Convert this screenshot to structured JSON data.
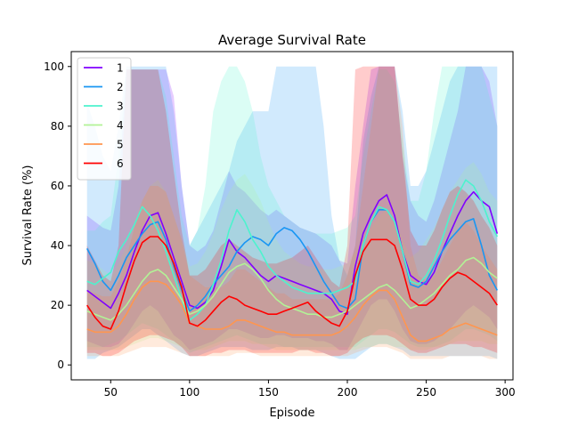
{
  "chart_data": {
    "type": "line",
    "title": "Average Survival Rate",
    "xlabel": "Episode",
    "ylabel": "Survival Rate (%)",
    "xlim": [
      25,
      305
    ],
    "ylim": [
      -5,
      105
    ],
    "xticks": [
      50,
      100,
      150,
      200,
      250,
      300
    ],
    "yticks": [
      0,
      20,
      40,
      60,
      80,
      100
    ],
    "grid": false,
    "legend_position": "top-left",
    "x": [
      35,
      40,
      45,
      50,
      55,
      60,
      65,
      70,
      75,
      80,
      85,
      90,
      95,
      100,
      105,
      110,
      115,
      120,
      125,
      130,
      135,
      140,
      145,
      150,
      155,
      160,
      165,
      170,
      175,
      180,
      185,
      190,
      195,
      200,
      205,
      210,
      215,
      220,
      225,
      230,
      235,
      240,
      245,
      250,
      255,
      260,
      265,
      270,
      275,
      280,
      285,
      290,
      295
    ],
    "series": [
      {
        "name": "1",
        "color": "#8000ff",
        "values": [
          25,
          23,
          21,
          19,
          24,
          30,
          38,
          45,
          50,
          51,
          44,
          36,
          28,
          20,
          19,
          21,
          25,
          33,
          42,
          38,
          36,
          33,
          30,
          28,
          30,
          29,
          28,
          27,
          26,
          25,
          24,
          22,
          18,
          17,
          33,
          44,
          50,
          55,
          57,
          50,
          38,
          30,
          28,
          27,
          31,
          38,
          44,
          50,
          55,
          58,
          55,
          53,
          44
        ],
        "band_low": [
          8,
          7,
          6,
          6,
          7,
          10,
          14,
          18,
          20,
          18,
          14,
          10,
          8,
          5,
          6,
          7,
          8,
          10,
          12,
          12,
          11,
          10,
          9,
          9,
          10,
          10,
          9,
          9,
          9,
          8,
          8,
          7,
          5,
          5,
          10,
          15,
          20,
          22,
          22,
          18,
          12,
          8,
          7,
          7,
          8,
          10,
          12,
          15,
          18,
          20,
          18,
          16,
          12
        ],
        "band_high": [
          50,
          48,
          46,
          45,
          60,
          99,
          99,
          99,
          99,
          99,
          99,
          90,
          60,
          40,
          38,
          40,
          45,
          55,
          65,
          60,
          58,
          55,
          52,
          50,
          52,
          50,
          48,
          46,
          45,
          44,
          42,
          40,
          35,
          34,
          60,
          80,
          99,
          100,
          100,
          100,
          70,
          55,
          50,
          48,
          55,
          65,
          75,
          85,
          100,
          100,
          100,
          95,
          80
        ]
      },
      {
        "name": "2",
        "color": "#1996f3",
        "values": [
          39,
          34,
          28,
          25,
          30,
          36,
          40,
          44,
          47,
          48,
          42,
          33,
          25,
          18,
          20,
          23,
          27,
          30,
          33,
          38,
          41,
          43,
          42,
          40,
          44,
          46,
          45,
          42,
          38,
          33,
          28,
          24,
          20,
          19,
          22,
          40,
          48,
          52,
          52,
          48,
          38,
          27,
          26,
          28,
          33,
          38,
          42,
          45,
          48,
          49,
          40,
          30,
          25
        ],
        "band_low": [
          2,
          2,
          4,
          5,
          6,
          8,
          10,
          12,
          12,
          10,
          8,
          6,
          4,
          3,
          3,
          4,
          5,
          6,
          6,
          6,
          6,
          5,
          5,
          5,
          6,
          6,
          6,
          5,
          5,
          5,
          4,
          3,
          2,
          2,
          2,
          4,
          6,
          7,
          7,
          6,
          5,
          3,
          3,
          3,
          3,
          3,
          3,
          3,
          3,
          3,
          3,
          3,
          2
        ],
        "band_high": [
          88,
          80,
          70,
          65,
          80,
          100,
          100,
          100,
          100,
          100,
          100,
          85,
          60,
          40,
          45,
          50,
          55,
          60,
          65,
          75,
          80,
          85,
          85,
          85,
          100,
          100,
          100,
          100,
          100,
          100,
          80,
          50,
          35,
          30,
          40,
          75,
          90,
          100,
          100,
          100,
          85,
          60,
          60,
          65,
          75,
          85,
          95,
          100,
          100,
          100,
          100,
          100,
          100
        ]
      },
      {
        "name": "3",
        "color": "#4df3ce",
        "values": [
          28,
          27,
          29,
          31,
          38,
          42,
          47,
          53,
          50,
          45,
          38,
          30,
          22,
          15,
          17,
          20,
          27,
          35,
          45,
          52,
          48,
          42,
          38,
          33,
          30,
          28,
          26,
          25,
          24,
          24,
          24,
          24,
          25,
          26,
          28,
          40,
          48,
          53,
          52,
          48,
          38,
          28,
          27,
          30,
          35,
          42,
          50,
          57,
          62,
          60,
          55,
          48,
          43
        ],
        "band_low": [
          6,
          6,
          6,
          7,
          8,
          10,
          12,
          14,
          13,
          12,
          10,
          8,
          6,
          4,
          5,
          6,
          7,
          8,
          9,
          10,
          9,
          8,
          7,
          7,
          7,
          6,
          6,
          6,
          6,
          6,
          6,
          6,
          6,
          6,
          6,
          8,
          10,
          12,
          12,
          11,
          9,
          7,
          6,
          6,
          6,
          7,
          8,
          10,
          12,
          12,
          11,
          10,
          8
        ],
        "band_high": [
          45,
          45,
          48,
          50,
          70,
          99,
          99,
          99,
          99,
          99,
          90,
          70,
          50,
          40,
          45,
          60,
          85,
          95,
          100,
          100,
          95,
          85,
          70,
          60,
          55,
          50,
          48,
          46,
          45,
          44,
          44,
          44,
          45,
          46,
          50,
          70,
          85,
          99,
          99,
          95,
          75,
          55,
          55,
          65,
          85,
          100,
          100,
          100,
          100,
          100,
          100,
          90,
          80
        ]
      },
      {
        "name": "4",
        "color": "#b2f396",
        "values": [
          18,
          17,
          16,
          15,
          17,
          20,
          24,
          28,
          31,
          32,
          30,
          26,
          22,
          17,
          18,
          20,
          23,
          27,
          31,
          33,
          34,
          32,
          29,
          25,
          22,
          20,
          19,
          18,
          17,
          17,
          16,
          16,
          17,
          18,
          20,
          22,
          24,
          26,
          27,
          25,
          22,
          19,
          20,
          22,
          24,
          27,
          30,
          32,
          35,
          36,
          34,
          31,
          29
        ],
        "band_low": [
          5,
          5,
          5,
          5,
          5,
          6,
          7,
          8,
          9,
          9,
          8,
          7,
          6,
          5,
          5,
          5,
          6,
          7,
          8,
          8,
          8,
          7,
          7,
          6,
          5,
          5,
          5,
          5,
          5,
          5,
          5,
          5,
          5,
          5,
          5,
          6,
          6,
          7,
          7,
          6,
          6,
          5,
          5,
          5,
          6,
          6,
          7,
          8,
          8,
          8,
          8,
          7,
          7
        ],
        "band_high": [
          35,
          34,
          32,
          30,
          34,
          40,
          48,
          55,
          60,
          62,
          58,
          50,
          42,
          33,
          34,
          38,
          44,
          52,
          58,
          62,
          64,
          60,
          55,
          48,
          42,
          38,
          36,
          34,
          33,
          33,
          32,
          32,
          33,
          34,
          38,
          42,
          46,
          50,
          52,
          48,
          42,
          36,
          38,
          42,
          46,
          52,
          58,
          62,
          66,
          68,
          64,
          58,
          55
        ]
      },
      {
        "name": "5",
        "color": "#ff964f",
        "values": [
          12,
          11,
          11,
          11,
          13,
          17,
          22,
          26,
          28,
          28,
          27,
          24,
          20,
          14,
          13,
          12,
          12,
          12,
          13,
          15,
          15,
          14,
          13,
          12,
          11,
          11,
          10,
          10,
          10,
          10,
          10,
          10,
          11,
          13,
          16,
          20,
          23,
          25,
          25,
          22,
          16,
          10,
          8,
          8,
          9,
          10,
          12,
          13,
          14,
          13,
          12,
          11,
          10
        ],
        "band_low": [
          3,
          3,
          3,
          3,
          3,
          4,
          5,
          6,
          6,
          6,
          6,
          5,
          4,
          3,
          3,
          3,
          3,
          3,
          3,
          4,
          4,
          4,
          3,
          3,
          3,
          3,
          3,
          3,
          3,
          3,
          3,
          3,
          3,
          3,
          4,
          5,
          6,
          6,
          6,
          5,
          4,
          2,
          2,
          2,
          2,
          2,
          3,
          3,
          3,
          3,
          3,
          2,
          2
        ],
        "band_high": [
          25,
          24,
          23,
          23,
          28,
          36,
          46,
          55,
          60,
          60,
          58,
          50,
          42,
          30,
          28,
          26,
          26,
          26,
          28,
          32,
          32,
          30,
          28,
          26,
          24,
          24,
          22,
          22,
          22,
          22,
          22,
          22,
          24,
          30,
          40,
          60,
          80,
          100,
          100,
          100,
          80,
          40,
          30,
          28,
          30,
          35,
          40,
          45,
          48,
          45,
          40,
          36,
          32
        ]
      },
      {
        "name": "6",
        "color": "#ff0000",
        "values": [
          20,
          16,
          13,
          12,
          18,
          27,
          35,
          41,
          43,
          43,
          40,
          34,
          26,
          14,
          13,
          15,
          18,
          21,
          23,
          22,
          20,
          19,
          18,
          17,
          17,
          18,
          19,
          20,
          21,
          18,
          16,
          14,
          13,
          18,
          30,
          38,
          42,
          42,
          42,
          40,
          32,
          22,
          20,
          20,
          22,
          26,
          29,
          31,
          30,
          28,
          26,
          24,
          20
        ],
        "band_low": [
          4,
          4,
          3,
          3,
          4,
          6,
          8,
          9,
          10,
          10,
          9,
          8,
          6,
          3,
          3,
          3,
          4,
          4,
          5,
          5,
          5,
          4,
          4,
          4,
          4,
          4,
          4,
          5,
          5,
          4,
          4,
          3,
          3,
          4,
          7,
          9,
          10,
          10,
          10,
          9,
          7,
          5,
          4,
          4,
          5,
          6,
          7,
          7,
          7,
          6,
          6,
          5,
          4
        ],
        "band_high": [
          40,
          35,
          30,
          28,
          40,
          99,
          99,
          99,
          99,
          99,
          85,
          65,
          45,
          30,
          30,
          32,
          36,
          40,
          42,
          40,
          38,
          36,
          35,
          34,
          34,
          35,
          36,
          38,
          40,
          36,
          32,
          28,
          26,
          40,
          99,
          100,
          100,
          100,
          100,
          100,
          70,
          45,
          40,
          40,
          45,
          52,
          58,
          60,
          58,
          55,
          50,
          46,
          40
        ]
      }
    ]
  }
}
